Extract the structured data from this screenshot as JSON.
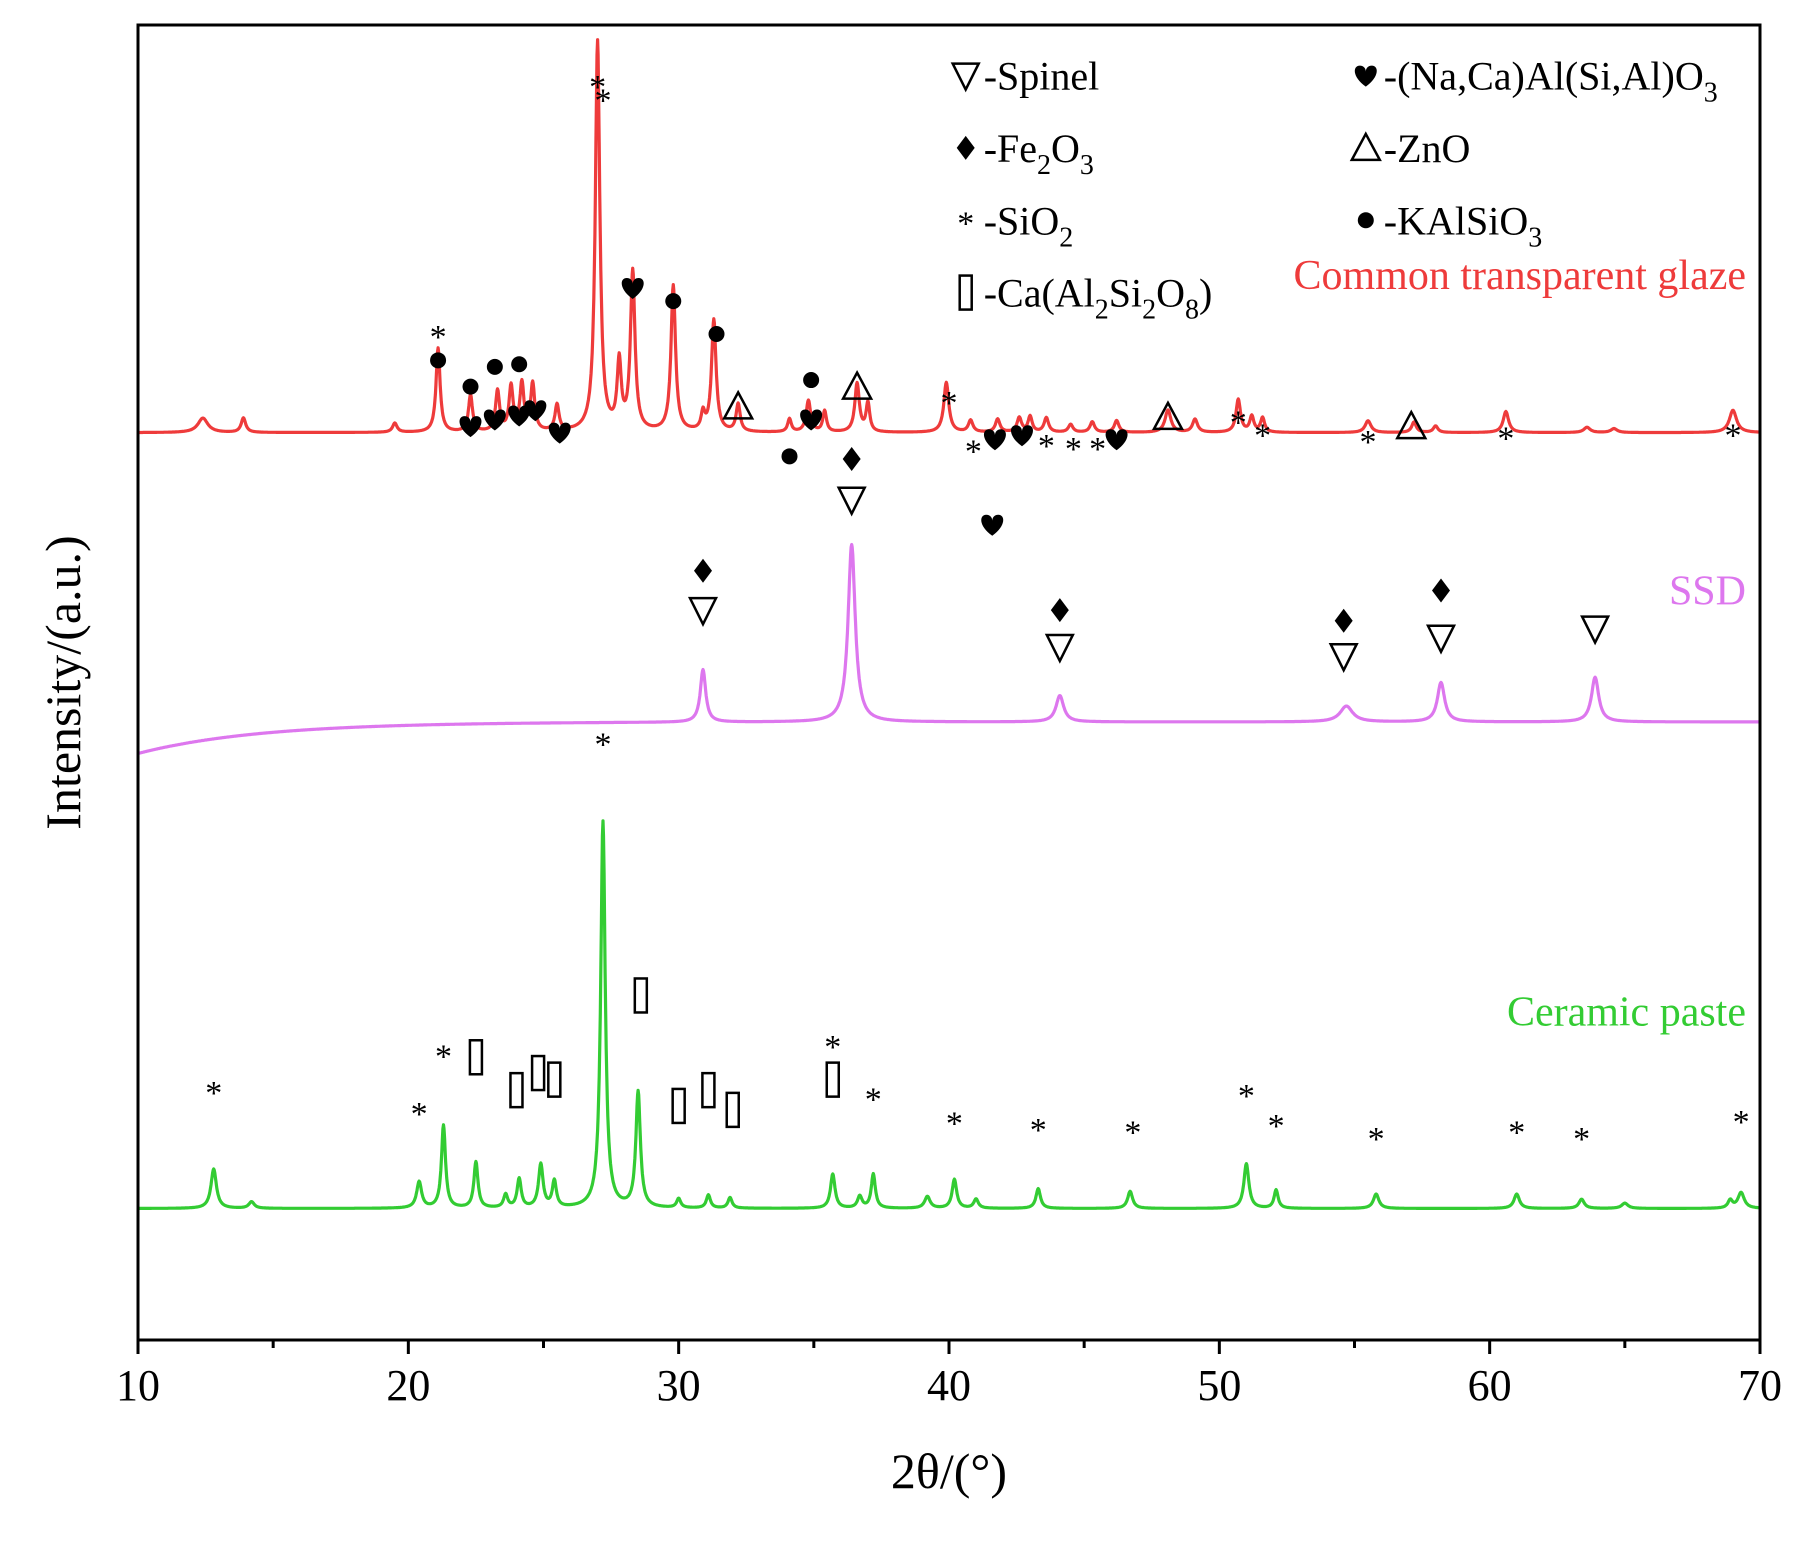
{
  "chart_data": {
    "type": "line",
    "title": "",
    "xlabel": "2θ/(°)",
    "ylabel": "Intensity/(a.u.)",
    "xlim": [
      10,
      70
    ],
    "xticks": [
      "10",
      "20",
      "30",
      "40",
      "50",
      "60",
      "70"
    ],
    "y_ticks_shown": false,
    "legend": {
      "placement": "top-right",
      "items": [
        {
          "symbol": "∇",
          "symbol_name": "spinel-icon",
          "label": "-Spinel",
          "html": "-Spinel"
        },
        {
          "symbol": "♥",
          "symbol_name": "heart-icon",
          "label": "-(Na,Ca)Al(Si,Al)O3",
          "html": "-(Na,Ca)Al(Si,Al)O<tspan class='sub' dy='12' font-size='28'>3</tspan>"
        },
        {
          "symbol": "◆",
          "symbol_name": "diamond-icon",
          "label": "-Fe2O3",
          "html": "-Fe<tspan dy='12' font-size='28'>2</tspan><tspan dy='-12'>O</tspan><tspan dy='12' font-size='28'>3</tspan>"
        },
        {
          "symbol": "Δ",
          "symbol_name": "delta-icon",
          "label": "-ZnO",
          "html": "-ZnO"
        },
        {
          "symbol": "*",
          "symbol_name": "star-icon",
          "label": "-SiO2",
          "html": "-SiO<tspan dy='12' font-size='28'>2</tspan>"
        },
        {
          "symbol": "●",
          "symbol_name": "dot-icon",
          "label": "-KAlSiO3",
          "html": "-KAlSiO<tspan dy='12' font-size='28'>3</tspan>"
        },
        {
          "symbol": "▯",
          "symbol_name": "rect-icon",
          "label": "-Ca(Al2Si2O8)",
          "html": "-Ca(Al<tspan dy='12' font-size='28'>2</tspan><tspan dy='-12'>Si</tspan><tspan dy='12' font-size='28'>2</tspan><tspan dy='-12'>O</tspan><tspan dy='12' font-size='28'>8</tspan><tspan dy='-12'>)</tspan>"
        }
      ]
    },
    "series": [
      {
        "name": "Common transparent glaze",
        "color": "#ee3b3b",
        "baseline": 0.31,
        "peaks": [
          [
            12.4,
            0.011,
            0.22
          ],
          [
            13.9,
            0.011,
            0.1
          ],
          [
            19.5,
            0.007,
            0.1
          ],
          [
            21.1,
            0.064,
            0.09
          ],
          [
            22.3,
            0.028,
            0.09
          ],
          [
            23.3,
            0.031,
            0.09
          ],
          [
            23.8,
            0.034,
            0.09
          ],
          [
            24.2,
            0.036,
            0.09
          ],
          [
            24.6,
            0.036,
            0.09
          ],
          [
            25.5,
            0.02,
            0.09
          ],
          [
            27.0,
            0.297,
            0.1
          ],
          [
            27.8,
            0.051,
            0.09
          ],
          [
            28.3,
            0.121,
            0.1
          ],
          [
            29.8,
            0.111,
            0.1
          ],
          [
            30.9,
            0.013,
            0.08
          ],
          [
            31.3,
            0.085,
            0.1
          ],
          [
            32.2,
            0.021,
            0.09
          ],
          [
            34.1,
            0.01,
            0.08
          ],
          [
            34.8,
            0.024,
            0.1
          ],
          [
            35.4,
            0.016,
            0.08
          ],
          [
            36.6,
            0.037,
            0.1
          ],
          [
            37.0,
            0.022,
            0.08
          ],
          [
            39.9,
            0.038,
            0.11
          ],
          [
            40.8,
            0.009,
            0.1
          ],
          [
            41.8,
            0.01,
            0.1
          ],
          [
            42.6,
            0.011,
            0.1
          ],
          [
            43.0,
            0.012,
            0.09
          ],
          [
            43.6,
            0.011,
            0.1
          ],
          [
            44.5,
            0.006,
            0.1
          ],
          [
            45.3,
            0.008,
            0.1
          ],
          [
            46.2,
            0.009,
            0.1
          ],
          [
            48.1,
            0.017,
            0.13
          ],
          [
            49.1,
            0.01,
            0.11
          ],
          [
            50.7,
            0.025,
            0.1
          ],
          [
            51.2,
            0.012,
            0.09
          ],
          [
            51.6,
            0.011,
            0.09
          ],
          [
            55.5,
            0.009,
            0.13
          ],
          [
            57.2,
            0.008,
            0.1
          ],
          [
            58.0,
            0.005,
            0.1
          ],
          [
            60.6,
            0.016,
            0.12
          ],
          [
            63.6,
            0.004,
            0.14
          ],
          [
            64.6,
            0.003,
            0.14
          ],
          [
            69.0,
            0.017,
            0.16
          ]
        ]
      },
      {
        "name": "SSD",
        "color": "#dd77ee",
        "baseline": 0.53,
        "start_dip": 0.024,
        "peaks": [
          [
            30.9,
            0.04,
            0.12
          ],
          [
            36.4,
            0.135,
            0.16
          ],
          [
            44.1,
            0.02,
            0.17
          ],
          [
            54.7,
            0.012,
            0.28
          ],
          [
            58.2,
            0.03,
            0.16
          ],
          [
            63.9,
            0.034,
            0.16
          ]
        ]
      },
      {
        "name": "Ceramic paste",
        "color": "#33cc33",
        "baseline": 0.9,
        "peaks": [
          [
            12.8,
            0.03,
            0.12
          ],
          [
            14.2,
            0.005,
            0.12
          ],
          [
            20.4,
            0.02,
            0.11
          ],
          [
            21.3,
            0.063,
            0.09
          ],
          [
            22.5,
            0.035,
            0.09
          ],
          [
            23.6,
            0.01,
            0.09
          ],
          [
            24.1,
            0.022,
            0.09
          ],
          [
            24.9,
            0.033,
            0.1
          ],
          [
            25.4,
            0.02,
            0.09
          ],
          [
            27.2,
            0.294,
            0.1
          ],
          [
            28.5,
            0.088,
            0.1
          ],
          [
            30.0,
            0.007,
            0.09
          ],
          [
            31.1,
            0.01,
            0.09
          ],
          [
            31.9,
            0.008,
            0.09
          ],
          [
            35.7,
            0.026,
            0.1
          ],
          [
            36.7,
            0.009,
            0.1
          ],
          [
            37.2,
            0.026,
            0.09
          ],
          [
            39.2,
            0.009,
            0.12
          ],
          [
            40.2,
            0.022,
            0.1
          ],
          [
            41.0,
            0.007,
            0.1
          ],
          [
            43.3,
            0.015,
            0.1
          ],
          [
            46.7,
            0.013,
            0.11
          ],
          [
            51.0,
            0.034,
            0.11
          ],
          [
            52.1,
            0.014,
            0.09
          ],
          [
            55.8,
            0.011,
            0.12
          ],
          [
            61.0,
            0.011,
            0.12
          ],
          [
            63.4,
            0.007,
            0.12
          ],
          [
            65.0,
            0.004,
            0.14
          ],
          [
            68.9,
            0.006,
            0.1
          ],
          [
            69.3,
            0.012,
            0.14
          ]
        ]
      }
    ],
    "series_labels": [
      {
        "text": "Common transparent glaze",
        "color": "#ee3b3b",
        "anchor_y": 0.19
      },
      {
        "text": "SSD",
        "color": "#dd77ee",
        "anchor_y": 0.43
      },
      {
        "text": "Ceramic paste",
        "color": "#33cc33",
        "anchor_y": 0.75
      }
    ],
    "peak_markers": [
      {
        "x": 21.1,
        "y": 0.235,
        "symbol": "*"
      },
      {
        "x": 21.1,
        "y": 0.255,
        "symbol": "●"
      },
      {
        "x": 22.3,
        "y": 0.275,
        "symbol": "●"
      },
      {
        "x": 23.2,
        "y": 0.26,
        "symbol": "●"
      },
      {
        "x": 24.1,
        "y": 0.258,
        "symbol": "●"
      },
      {
        "x": 22.3,
        "y": 0.305,
        "symbol": "♥"
      },
      {
        "x": 23.2,
        "y": 0.3,
        "symbol": "♥"
      },
      {
        "x": 24.1,
        "y": 0.297,
        "symbol": "♥"
      },
      {
        "x": 24.7,
        "y": 0.293,
        "symbol": "♥"
      },
      {
        "x": 25.6,
        "y": 0.31,
        "symbol": "♥"
      },
      {
        "x": 27.0,
        "y": 0.045,
        "symbol": "*"
      },
      {
        "x": 28.3,
        "y": 0.2,
        "symbol": "♥"
      },
      {
        "x": 29.8,
        "y": 0.21,
        "symbol": "●"
      },
      {
        "x": 31.4,
        "y": 0.235,
        "symbol": "●"
      },
      {
        "x": 32.2,
        "y": 0.29,
        "symbol": "Δ"
      },
      {
        "x": 34.1,
        "y": 0.328,
        "symbol": "●"
      },
      {
        "x": 34.9,
        "y": 0.27,
        "symbol": "●"
      },
      {
        "x": 34.9,
        "y": 0.3,
        "symbol": "♥"
      },
      {
        "x": 36.6,
        "y": 0.275,
        "symbol": "Δ"
      },
      {
        "x": 40.0,
        "y": 0.285,
        "symbol": "*"
      },
      {
        "x": 40.9,
        "y": 0.322,
        "symbol": "*"
      },
      {
        "x": 41.7,
        "y": 0.315,
        "symbol": "♥"
      },
      {
        "x": 42.7,
        "y": 0.312,
        "symbol": "♥"
      },
      {
        "x": 43.6,
        "y": 0.318,
        "symbol": "*"
      },
      {
        "x": 44.6,
        "y": 0.32,
        "symbol": "*"
      },
      {
        "x": 45.5,
        "y": 0.32,
        "symbol": "*"
      },
      {
        "x": 46.2,
        "y": 0.315,
        "symbol": "♥"
      },
      {
        "x": 48.1,
        "y": 0.298,
        "symbol": "Δ"
      },
      {
        "x": 50.7,
        "y": 0.3,
        "symbol": "*"
      },
      {
        "x": 51.6,
        "y": 0.31,
        "symbol": "*"
      },
      {
        "x": 55.5,
        "y": 0.315,
        "symbol": "*"
      },
      {
        "x": 57.1,
        "y": 0.305,
        "symbol": "Δ"
      },
      {
        "x": 60.6,
        "y": 0.312,
        "symbol": "*"
      },
      {
        "x": 69.0,
        "y": 0.31,
        "symbol": "*"
      },
      {
        "x": 36.4,
        "y": 0.33,
        "symbol": "◆"
      },
      {
        "x": 36.4,
        "y": 0.361,
        "symbol": "∇"
      },
      {
        "x": 41.6,
        "y": 0.38,
        "symbol": "♥"
      },
      {
        "x": 30.9,
        "y": 0.415,
        "symbol": "◆"
      },
      {
        "x": 30.9,
        "y": 0.445,
        "symbol": "∇"
      },
      {
        "x": 44.1,
        "y": 0.445,
        "symbol": "◆"
      },
      {
        "x": 44.1,
        "y": 0.473,
        "symbol": "∇"
      },
      {
        "x": 54.6,
        "y": 0.453,
        "symbol": "◆"
      },
      {
        "x": 54.6,
        "y": 0.48,
        "symbol": "∇"
      },
      {
        "x": 58.2,
        "y": 0.43,
        "symbol": "◆"
      },
      {
        "x": 58.2,
        "y": 0.466,
        "symbol": "∇"
      },
      {
        "x": 63.9,
        "y": 0.459,
        "symbol": "∇"
      },
      {
        "x": 12.8,
        "y": 0.81,
        "symbol": "*"
      },
      {
        "x": 20.4,
        "y": 0.826,
        "symbol": "*"
      },
      {
        "x": 21.3,
        "y": 0.782,
        "symbol": "*"
      },
      {
        "x": 22.5,
        "y": 0.785,
        "symbol": "▯"
      },
      {
        "x": 24.0,
        "y": 0.81,
        "symbol": "▯"
      },
      {
        "x": 24.8,
        "y": 0.797,
        "symbol": "▯"
      },
      {
        "x": 25.4,
        "y": 0.802,
        "symbol": "▯"
      },
      {
        "x": 27.2,
        "y": 0.055,
        "symbol": "*",
        "y2": 0.545
      },
      {
        "x": 28.6,
        "y": 0.738,
        "symbol": "▯"
      },
      {
        "x": 30.0,
        "y": 0.822,
        "symbol": "▯"
      },
      {
        "x": 31.1,
        "y": 0.81,
        "symbol": "▯"
      },
      {
        "x": 32.0,
        "y": 0.825,
        "symbol": "▯"
      },
      {
        "x": 35.7,
        "y": 0.775,
        "symbol": "*"
      },
      {
        "x": 35.7,
        "y": 0.802,
        "symbol": "▯"
      },
      {
        "x": 37.2,
        "y": 0.815,
        "symbol": "*"
      },
      {
        "x": 40.2,
        "y": 0.833,
        "symbol": "*"
      },
      {
        "x": 43.3,
        "y": 0.838,
        "symbol": "*"
      },
      {
        "x": 46.8,
        "y": 0.84,
        "symbol": "*"
      },
      {
        "x": 51.0,
        "y": 0.812,
        "symbol": "*"
      },
      {
        "x": 52.1,
        "y": 0.835,
        "symbol": "*"
      },
      {
        "x": 55.8,
        "y": 0.845,
        "symbol": "*"
      },
      {
        "x": 61.0,
        "y": 0.84,
        "symbol": "*"
      },
      {
        "x": 63.4,
        "y": 0.845,
        "symbol": "*"
      },
      {
        "x": 69.3,
        "y": 0.832,
        "symbol": "*"
      }
    ]
  }
}
